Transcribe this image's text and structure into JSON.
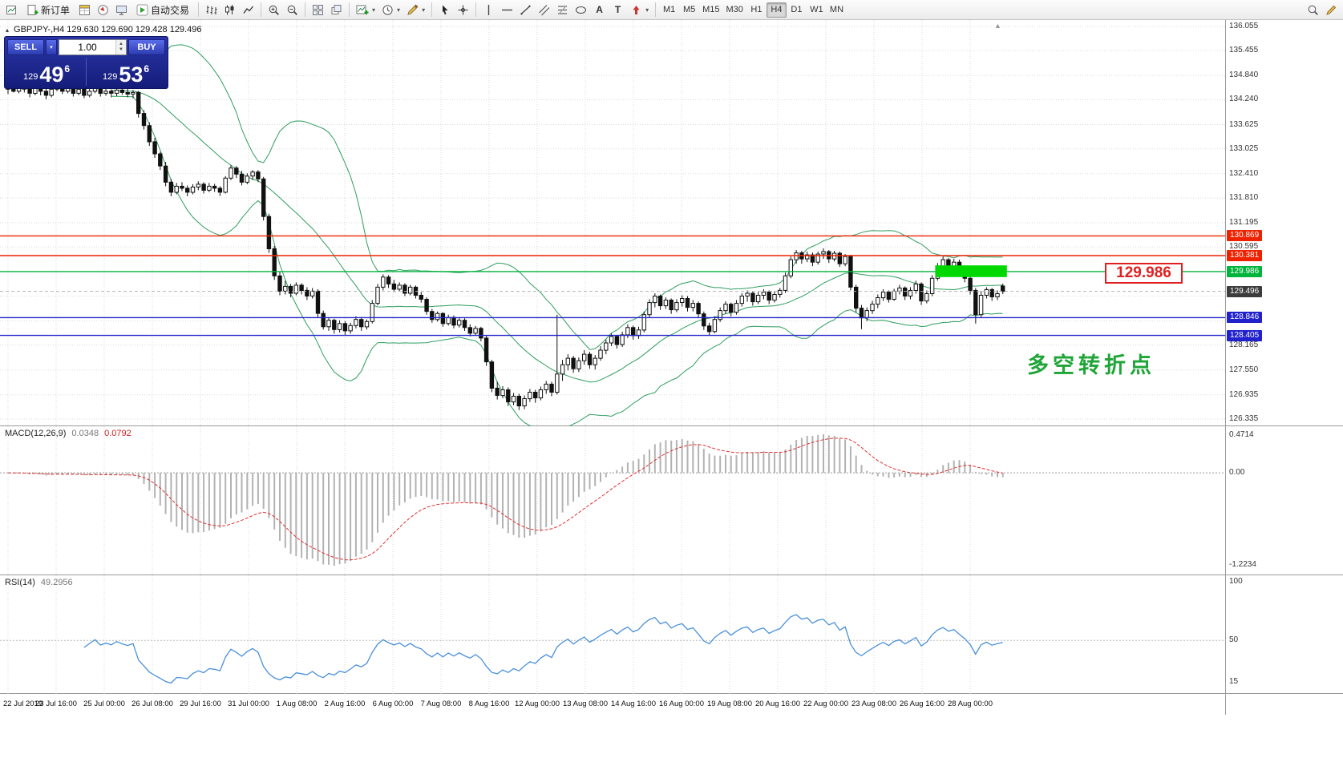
{
  "toolbar": {
    "new_order_label": "新订单",
    "auto_trading_label": "自动交易",
    "text_tool_label": "A",
    "label_tool_label": "T",
    "timeframes": [
      "M1",
      "M5",
      "M15",
      "M30",
      "H1",
      "H4",
      "D1",
      "W1",
      "MN"
    ],
    "active_timeframe": "H4",
    "dropdown_glyph": "▾"
  },
  "trade_panel": {
    "sell_label": "SELL",
    "buy_label": "BUY",
    "volume": "1.00",
    "sell_prefix": "129",
    "sell_big": "49",
    "sell_sup": "6",
    "buy_prefix": "129",
    "buy_big": "53",
    "buy_sup": "6"
  },
  "chart": {
    "symbol_line": "GBPJPY-,H4  129.630 129.690 129.428 129.496",
    "collapse_arrow": "▴",
    "shift_marker": "▲",
    "annotation_text": "多空转折点",
    "annotation_color": "#1fa537",
    "price_tag": "129.986",
    "axis_min": 126.335,
    "axis_max": 136.055,
    "y_labels": [
      "136.055",
      "135.455",
      "134.840",
      "134.240",
      "133.625",
      "133.025",
      "132.410",
      "131.810",
      "131.195",
      "130.595",
      "129.980",
      "129.380",
      "128.765",
      "128.165",
      "127.550",
      "126.935",
      "126.335"
    ],
    "hlines": [
      {
        "price": 130.869,
        "color": "#ee2200"
      },
      {
        "price": 130.381,
        "color": "#ee2200"
      },
      {
        "price": 129.986,
        "color": "#00b43c"
      },
      {
        "price": 128.846,
        "color": "#2222cc"
      },
      {
        "price": 128.405,
        "color": "#2222cc"
      }
    ],
    "bid_price": 129.496,
    "badges": [
      {
        "text": "130.869",
        "bg": "#ee2200",
        "price": 130.869
      },
      {
        "text": "130.381",
        "bg": "#ee2200",
        "price": 130.381
      },
      {
        "text": "129.986",
        "bg": "#00b43c",
        "price": 129.986
      },
      {
        "text": "129.496",
        "bg": "#3c3c3c",
        "price": 129.496
      },
      {
        "text": "128.846",
        "bg": "#2222cc",
        "price": 128.846
      },
      {
        "text": "128.405",
        "bg": "#2222cc",
        "price": 128.405
      }
    ],
    "highlight_rect": {
      "start_index": 171,
      "end_index": 183,
      "price_top": 130.14,
      "price_bottom": 129.85,
      "color": "#00d800"
    }
  },
  "macd": {
    "label": "MACD(12,26,9)",
    "value_main": "0.0348",
    "value_signal": "0.0792",
    "axis_top": "0.4714",
    "axis_zero": "0.00",
    "axis_bottom": "-1.2234"
  },
  "rsi": {
    "label": "RSI(14)",
    "value": "49.2956",
    "axis_labels": [
      {
        "text": "100",
        "value": 100
      },
      {
        "text": "50",
        "value": 50
      },
      {
        "text": "15",
        "value": 15
      }
    ]
  },
  "time_axis": [
    "22 Jul 2019",
    "23 Jul 16:00",
    "25 Jul 00:00",
    "26 Jul 08:00",
    "29 Jul 16:00",
    "31 Jul 00:00",
    "1 Aug 08:00",
    "2 Aug 16:00",
    "6 Aug 00:00",
    "7 Aug 08:00",
    "8 Aug 16:00",
    "12 Aug 00:00",
    "13 Aug 08:00",
    "14 Aug 16:00",
    "16 Aug 00:00",
    "19 Aug 08:00",
    "20 Aug 16:00",
    "22 Aug 00:00",
    "23 Aug 08:00",
    "26 Aug 16:00",
    "28 Aug 00:00"
  ],
  "chart_data": {
    "type": "candlestick",
    "symbol": "GBPJPY-",
    "timeframe": "H4",
    "indicators": {
      "bollinger_period": 20,
      "bollinger_deviation": 2,
      "macd": [
        12,
        26,
        9
      ],
      "rsi_period": 14
    },
    "ohlc": [
      [
        134.5,
        134.62,
        134.38,
        134.55
      ],
      [
        134.55,
        134.65,
        134.42,
        134.45
      ],
      [
        134.45,
        134.7,
        134.4,
        134.6
      ],
      [
        134.6,
        134.68,
        134.42,
        134.5
      ],
      [
        134.5,
        134.58,
        134.3,
        134.4
      ],
      [
        134.4,
        134.62,
        134.35,
        134.55
      ],
      [
        134.55,
        134.6,
        134.35,
        134.45
      ],
      [
        134.45,
        134.52,
        134.25,
        134.35
      ],
      [
        134.35,
        134.58,
        134.3,
        134.5
      ],
      [
        134.5,
        134.68,
        134.45,
        134.6
      ],
      [
        134.6,
        134.66,
        134.38,
        134.45
      ],
      [
        134.45,
        134.62,
        134.4,
        134.55
      ],
      [
        134.55,
        134.6,
        134.32,
        134.4
      ],
      [
        134.4,
        134.58,
        134.35,
        134.5
      ],
      [
        134.5,
        134.55,
        134.28,
        134.35
      ],
      [
        134.35,
        134.52,
        134.3,
        134.45
      ],
      [
        134.45,
        134.62,
        134.4,
        134.55
      ],
      [
        134.55,
        134.6,
        134.32,
        134.4
      ],
      [
        134.4,
        134.52,
        134.34,
        134.45
      ],
      [
        134.45,
        134.5,
        134.3,
        134.4
      ],
      [
        134.4,
        134.56,
        134.33,
        134.48
      ],
      [
        134.48,
        134.6,
        134.36,
        134.42
      ],
      [
        134.42,
        134.55,
        134.3,
        134.38
      ],
      [
        134.38,
        134.48,
        134.28,
        134.42
      ],
      [
        134.42,
        134.46,
        133.8,
        133.9
      ],
      [
        133.9,
        133.98,
        133.5,
        133.6
      ],
      [
        133.6,
        133.68,
        133.1,
        133.2
      ],
      [
        133.2,
        133.3,
        132.8,
        132.9
      ],
      [
        132.9,
        132.95,
        132.5,
        132.6
      ],
      [
        132.6,
        132.7,
        132.1,
        132.2
      ],
      [
        132.2,
        132.28,
        131.85,
        131.95
      ],
      [
        131.95,
        132.18,
        131.9,
        132.1
      ],
      [
        132.1,
        132.2,
        131.98,
        132.05
      ],
      [
        132.05,
        132.12,
        131.85,
        131.95
      ],
      [
        131.95,
        132.15,
        131.9,
        132.08
      ],
      [
        132.08,
        132.22,
        132.0,
        132.15
      ],
      [
        132.15,
        132.2,
        131.92,
        132.0
      ],
      [
        132.0,
        132.18,
        131.95,
        132.1
      ],
      [
        132.1,
        132.16,
        131.96,
        132.05
      ],
      [
        132.05,
        132.1,
        131.86,
        131.95
      ],
      [
        131.95,
        132.35,
        131.92,
        132.3
      ],
      [
        132.3,
        132.62,
        132.25,
        132.55
      ],
      [
        132.55,
        132.6,
        132.3,
        132.4
      ],
      [
        132.4,
        132.48,
        132.12,
        132.2
      ],
      [
        132.2,
        132.42,
        132.15,
        132.35
      ],
      [
        132.35,
        132.5,
        132.25,
        132.45
      ],
      [
        132.45,
        132.5,
        132.2,
        132.28
      ],
      [
        132.28,
        132.33,
        131.25,
        131.35
      ],
      [
        131.35,
        131.42,
        130.45,
        130.55
      ],
      [
        130.55,
        130.62,
        129.78,
        129.88
      ],
      [
        129.88,
        129.98,
        129.4,
        129.5
      ],
      [
        129.5,
        129.76,
        129.42,
        129.62
      ],
      [
        129.62,
        129.68,
        129.35,
        129.45
      ],
      [
        129.45,
        129.72,
        129.4,
        129.65
      ],
      [
        129.65,
        129.7,
        129.42,
        129.52
      ],
      [
        129.52,
        129.6,
        129.28,
        129.38
      ],
      [
        129.38,
        129.58,
        129.32,
        129.5
      ],
      [
        129.5,
        129.55,
        128.85,
        128.95
      ],
      [
        128.95,
        129.02,
        128.55,
        128.62
      ],
      [
        128.62,
        128.85,
        128.52,
        128.78
      ],
      [
        128.78,
        128.82,
        128.45,
        128.55
      ],
      [
        128.55,
        128.78,
        128.48,
        128.7
      ],
      [
        128.7,
        128.76,
        128.42,
        128.52
      ],
      [
        128.52,
        128.72,
        128.45,
        128.65
      ],
      [
        128.65,
        128.88,
        128.58,
        128.8
      ],
      [
        128.8,
        128.86,
        128.52,
        128.62
      ],
      [
        128.62,
        128.8,
        128.55,
        128.75
      ],
      [
        128.75,
        129.28,
        128.7,
        129.2
      ],
      [
        129.2,
        129.68,
        129.15,
        129.6
      ],
      [
        129.6,
        129.92,
        129.52,
        129.85
      ],
      [
        129.85,
        129.9,
        129.58,
        129.68
      ],
      [
        129.68,
        129.78,
        129.48,
        129.55
      ],
      [
        129.55,
        129.72,
        129.5,
        129.65
      ],
      [
        129.65,
        129.7,
        129.38,
        129.45
      ],
      [
        129.45,
        129.66,
        129.4,
        129.6
      ],
      [
        129.6,
        129.64,
        129.32,
        129.4
      ],
      [
        129.4,
        129.48,
        129.22,
        129.3
      ],
      [
        129.3,
        129.35,
        128.92,
        129.0
      ],
      [
        129.0,
        129.06,
        128.72,
        128.8
      ],
      [
        128.8,
        129.0,
        128.75,
        128.95
      ],
      [
        128.95,
        128.98,
        128.62,
        128.7
      ],
      [
        128.7,
        128.92,
        128.65,
        128.85
      ],
      [
        128.85,
        128.9,
        128.58,
        128.66
      ],
      [
        128.66,
        128.84,
        128.6,
        128.78
      ],
      [
        128.78,
        128.83,
        128.52,
        128.6
      ],
      [
        128.6,
        128.68,
        128.38,
        128.46
      ],
      [
        128.46,
        128.64,
        128.4,
        128.58
      ],
      [
        128.58,
        128.62,
        128.26,
        128.34
      ],
      [
        128.34,
        128.4,
        127.65,
        127.75
      ],
      [
        127.75,
        127.8,
        127.0,
        127.1
      ],
      [
        127.1,
        127.26,
        126.82,
        126.92
      ],
      [
        126.92,
        127.15,
        126.85,
        127.06
      ],
      [
        127.06,
        127.12,
        126.66,
        126.76
      ],
      [
        126.76,
        126.98,
        126.68,
        126.9
      ],
      [
        126.9,
        126.96,
        126.56,
        126.66
      ],
      [
        126.66,
        126.92,
        126.58,
        126.84
      ],
      [
        126.84,
        127.08,
        126.76,
        127.0
      ],
      [
        127.0,
        127.06,
        126.74,
        126.86
      ],
      [
        126.86,
        127.14,
        126.8,
        127.06
      ],
      [
        127.06,
        127.28,
        126.96,
        127.2
      ],
      [
        127.2,
        127.26,
        126.9,
        127.0
      ],
      [
        127.0,
        128.92,
        126.94,
        127.45
      ],
      [
        127.45,
        127.8,
        127.28,
        127.68
      ],
      [
        127.68,
        127.94,
        127.54,
        127.84
      ],
      [
        127.84,
        127.9,
        127.48,
        127.58
      ],
      [
        127.58,
        127.86,
        127.5,
        127.78
      ],
      [
        127.78,
        128.04,
        127.68,
        127.94
      ],
      [
        127.94,
        128.0,
        127.58,
        127.68
      ],
      [
        127.68,
        127.92,
        127.56,
        127.84
      ],
      [
        127.84,
        128.14,
        127.78,
        128.04
      ],
      [
        128.04,
        128.3,
        127.94,
        128.22
      ],
      [
        128.22,
        128.45,
        128.14,
        128.38
      ],
      [
        128.38,
        128.42,
        128.08,
        128.18
      ],
      [
        128.18,
        128.5,
        128.12,
        128.42
      ],
      [
        128.42,
        128.68,
        128.34,
        128.6
      ],
      [
        128.6,
        128.65,
        128.3,
        128.4
      ],
      [
        128.4,
        128.62,
        128.32,
        128.54
      ],
      [
        128.54,
        129.0,
        128.48,
        128.92
      ],
      [
        128.92,
        129.3,
        128.84,
        129.22
      ],
      [
        129.22,
        129.45,
        129.1,
        129.38
      ],
      [
        129.38,
        129.42,
        129.04,
        129.14
      ],
      [
        129.14,
        129.35,
        129.06,
        129.28
      ],
      [
        129.28,
        129.32,
        128.94,
        129.04
      ],
      [
        129.04,
        129.3,
        128.98,
        129.22
      ],
      [
        129.22,
        129.4,
        129.12,
        129.32
      ],
      [
        129.32,
        129.38,
        129.0,
        129.1
      ],
      [
        129.1,
        129.28,
        129.0,
        129.2
      ],
      [
        129.2,
        129.25,
        128.84,
        128.94
      ],
      [
        128.94,
        129.0,
        128.54,
        128.64
      ],
      [
        128.64,
        128.72,
        128.4,
        128.5
      ],
      [
        128.5,
        128.88,
        128.46,
        128.8
      ],
      [
        128.8,
        129.1,
        128.74,
        129.02
      ],
      [
        129.02,
        129.25,
        128.94,
        129.18
      ],
      [
        129.18,
        129.22,
        128.88,
        128.98
      ],
      [
        128.98,
        129.28,
        128.92,
        129.2
      ],
      [
        129.2,
        129.45,
        129.12,
        129.38
      ],
      [
        129.38,
        129.52,
        129.24,
        129.45
      ],
      [
        129.45,
        129.5,
        129.14,
        129.24
      ],
      [
        129.24,
        129.48,
        129.18,
        129.4
      ],
      [
        129.4,
        129.55,
        129.3,
        129.48
      ],
      [
        129.48,
        129.52,
        129.18,
        129.28
      ],
      [
        129.28,
        129.5,
        129.22,
        129.42
      ],
      [
        129.42,
        129.58,
        129.34,
        129.52
      ],
      [
        129.52,
        129.96,
        129.46,
        129.88
      ],
      [
        129.88,
        130.36,
        129.82,
        130.28
      ],
      [
        130.28,
        130.52,
        130.18,
        130.45
      ],
      [
        130.45,
        130.5,
        130.18,
        130.3
      ],
      [
        130.3,
        130.48,
        130.22,
        130.4
      ],
      [
        130.4,
        130.46,
        130.12,
        130.22
      ],
      [
        130.22,
        130.48,
        130.16,
        130.42
      ],
      [
        130.42,
        130.56,
        130.3,
        130.48
      ],
      [
        130.48,
        130.52,
        130.2,
        130.3
      ],
      [
        130.3,
        130.5,
        130.24,
        130.44
      ],
      [
        130.44,
        130.48,
        130.1,
        130.18
      ],
      [
        130.18,
        130.42,
        130.12,
        130.36
      ],
      [
        130.36,
        130.4,
        129.52,
        129.6
      ],
      [
        129.6,
        129.66,
        128.98,
        129.08
      ],
      [
        129.08,
        129.16,
        128.56,
        128.84
      ],
      [
        128.84,
        129.1,
        128.76,
        129.02
      ],
      [
        129.02,
        129.26,
        128.94,
        129.18
      ],
      [
        129.18,
        129.42,
        129.08,
        129.34
      ],
      [
        129.34,
        129.55,
        129.26,
        129.48
      ],
      [
        129.48,
        129.52,
        129.22,
        129.3
      ],
      [
        129.3,
        129.56,
        129.26,
        129.5
      ],
      [
        129.5,
        129.66,
        129.42,
        129.58
      ],
      [
        129.58,
        129.62,
        129.28,
        129.38
      ],
      [
        129.38,
        129.6,
        129.3,
        129.52
      ],
      [
        129.52,
        129.76,
        129.44,
        129.68
      ],
      [
        129.68,
        129.72,
        129.16,
        129.26
      ],
      [
        129.26,
        129.52,
        129.2,
        129.44
      ],
      [
        129.44,
        129.9,
        129.38,
        129.82
      ],
      [
        129.82,
        130.2,
        129.76,
        130.12
      ],
      [
        130.12,
        130.36,
        130.02,
        130.28
      ],
      [
        130.28,
        130.32,
        130.02,
        130.12
      ],
      [
        130.12,
        130.3,
        129.98,
        130.22
      ],
      [
        130.22,
        130.28,
        129.92,
        130.02
      ],
      [
        130.02,
        130.08,
        129.72,
        129.82
      ],
      [
        129.82,
        129.9,
        129.42,
        129.52
      ],
      [
        129.52,
        129.58,
        128.7,
        128.92
      ],
      [
        128.92,
        129.5,
        128.86,
        129.4
      ],
      [
        129.4,
        129.6,
        129.32,
        129.54
      ],
      [
        129.54,
        129.58,
        129.26,
        129.36
      ],
      [
        129.36,
        129.52,
        129.28,
        129.44
      ],
      [
        129.63,
        129.69,
        129.428,
        129.496
      ]
    ]
  }
}
